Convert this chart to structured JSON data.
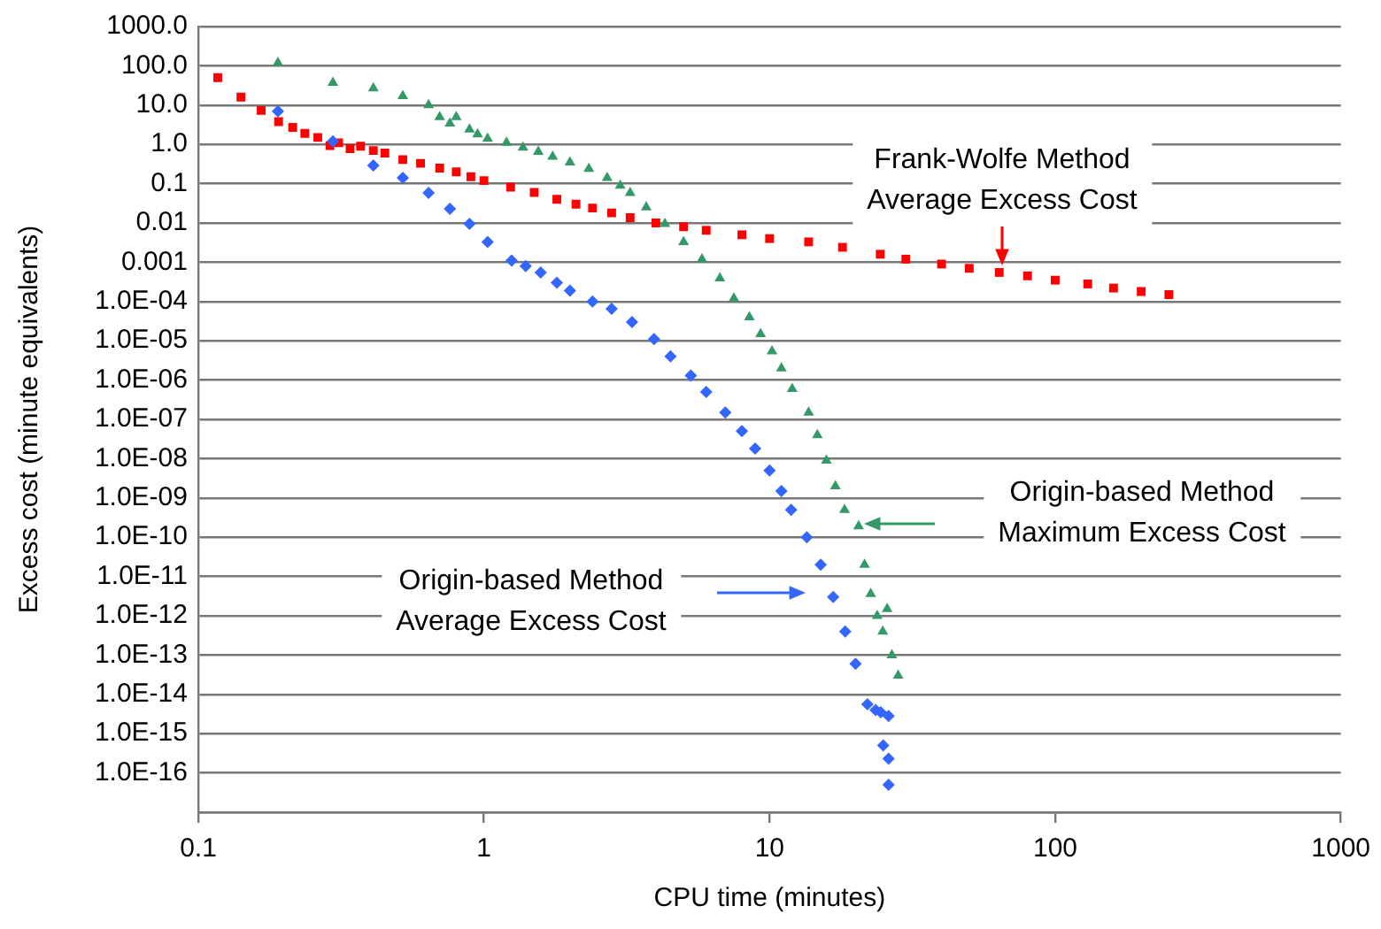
{
  "chart_data": {
    "type": "scatter",
    "xlabel": "CPU time (minutes)",
    "ylabel": "Excess cost (minute equivalents)",
    "log": "xy",
    "grid": "y",
    "legend": false,
    "xlim": [
      0.1,
      1000
    ],
    "xticks": [
      0.1,
      1,
      10,
      100,
      1000
    ],
    "ylim": [
      1e-17,
      1000
    ],
    "yticks": [
      {
        "value": 1e-17,
        "label": null
      },
      {
        "value": 1e-16,
        "label": "1.0E-16"
      },
      {
        "value": 1e-15,
        "label": "1.0E-15"
      },
      {
        "value": 1e-14,
        "label": "1.0E-14"
      },
      {
        "value": 1e-13,
        "label": "1.0E-13"
      },
      {
        "value": 1e-12,
        "label": "1.0E-12"
      },
      {
        "value": 1e-11,
        "label": "1.0E-11"
      },
      {
        "value": 1e-10,
        "label": "1.0E-10"
      },
      {
        "value": 1e-09,
        "label": "1.0E-09"
      },
      {
        "value": 1e-08,
        "label": "1.0E-08"
      },
      {
        "value": 1e-07,
        "label": "1.0E-07"
      },
      {
        "value": 1e-06,
        "label": "1.0E-06"
      },
      {
        "value": 1e-05,
        "label": "1.0E-05"
      },
      {
        "value": 0.0001,
        "label": "1.0E-04"
      },
      0.001,
      0.01,
      0.1,
      {
        "value": 1,
        "label": "1.0"
      },
      {
        "value": 10,
        "label": "10.0"
      },
      {
        "value": 100,
        "label": "100.0"
      },
      {
        "value": 1000,
        "label": "1000.0"
      }
    ],
    "series": [
      {
        "color": "#ff0000",
        "marker": "square",
        "x": [
          0.117,
          0.141,
          0.166,
          0.191,
          0.214,
          0.236,
          0.262,
          0.289,
          0.31,
          0.34,
          0.37,
          0.41,
          0.45,
          0.52,
          0.6,
          0.7,
          0.8,
          0.9,
          1.0,
          1.24,
          1.5,
          1.8,
          2.1,
          2.4,
          2.8,
          3.25,
          4,
          5,
          6,
          8,
          10,
          13.7,
          18,
          24.4,
          30,
          40,
          50,
          63.7,
          80,
          100,
          130,
          160,
          200,
          250
        ],
        "values": [
          50,
          16,
          7.3,
          3.8,
          2.7,
          1.9,
          1.5,
          0.93,
          1.1,
          0.78,
          0.9,
          0.7,
          0.6,
          0.41,
          0.33,
          0.25,
          0.2,
          0.15,
          0.12,
          0.082,
          0.06,
          0.04,
          0.03,
          0.024,
          0.018,
          0.0137,
          0.01,
          0.008,
          0.0065,
          0.005,
          0.004,
          0.0033,
          0.0024,
          0.0016,
          0.0012,
          0.0009,
          0.0007,
          0.00055,
          0.00045,
          0.00035,
          0.00028,
          0.00022,
          0.00018,
          0.00015
        ]
      },
      {
        "color": "#339966",
        "marker": "triangle",
        "x": [
          0.19,
          0.296,
          0.41,
          0.52,
          0.64,
          0.7,
          0.76,
          0.8,
          0.89,
          0.95,
          1.03,
          1.2,
          1.37,
          1.55,
          1.74,
          2.0,
          2.33,
          2.7,
          3.0,
          3.25,
          3.7,
          4.3,
          5.0,
          5.8,
          6.7,
          7.5,
          8.5,
          9.3,
          10.2,
          11,
          12,
          13.7,
          14.7,
          15.8,
          17,
          18.3,
          20.5,
          21.5,
          22.6,
          23.8,
          24.9,
          25.8,
          26.8,
          28.2
        ],
        "values": [
          120,
          37,
          27,
          17,
          10,
          5,
          3.4,
          5,
          2.4,
          1.8,
          1.4,
          1.1,
          0.83,
          0.65,
          0.49,
          0.35,
          0.24,
          0.14,
          0.09,
          0.058,
          0.025,
          0.0095,
          0.0033,
          0.0012,
          0.00039,
          0.00012,
          4e-05,
          1.5e-05,
          5.4e-06,
          2e-06,
          6e-07,
          1.5e-07,
          4e-08,
          9e-09,
          2e-09,
          5e-10,
          1.9e-10,
          2e-11,
          3.6e-12,
          1e-12,
          4e-13,
          1.5e-12,
          1e-13,
          3e-14
        ]
      },
      {
        "color": "#3366ff",
        "marker": "diamond",
        "x": [
          0.19,
          0.296,
          0.41,
          0.52,
          0.64,
          0.76,
          0.89,
          1.03,
          1.25,
          1.4,
          1.58,
          1.8,
          2.0,
          2.4,
          2.8,
          3.3,
          3.94,
          4.5,
          5.3,
          6.0,
          7.0,
          8.0,
          8.9,
          10,
          11,
          11.9,
          13.5,
          15.1,
          16.7,
          18.4,
          20,
          22,
          23.5,
          24.5,
          26.1,
          25,
          26.1,
          26.1
        ],
        "values": [
          7,
          1.2,
          0.29,
          0.14,
          0.058,
          0.023,
          0.0095,
          0.0033,
          0.0011,
          0.0008,
          0.00055,
          0.0003,
          0.00019,
          0.0001,
          6.5e-05,
          3e-05,
          1.1e-05,
          4e-06,
          1.3e-06,
          5e-07,
          1.5e-07,
          5e-08,
          1.8e-08,
          5e-09,
          1.5e-09,
          5e-10,
          1e-10,
          2e-11,
          3e-12,
          4e-13,
          6e-14,
          5.6e-15,
          4e-15,
          3.5e-15,
          2.8e-15,
          5e-16,
          2.3e-16,
          5e-17
        ]
      }
    ],
    "annotations": [
      "Frank-Wolfe Method\nAverage Excess Cost",
      "Origin-based Method\nMaximum Excess Cost",
      "Origin-based Method\nAverage Excess Cost"
    ]
  }
}
